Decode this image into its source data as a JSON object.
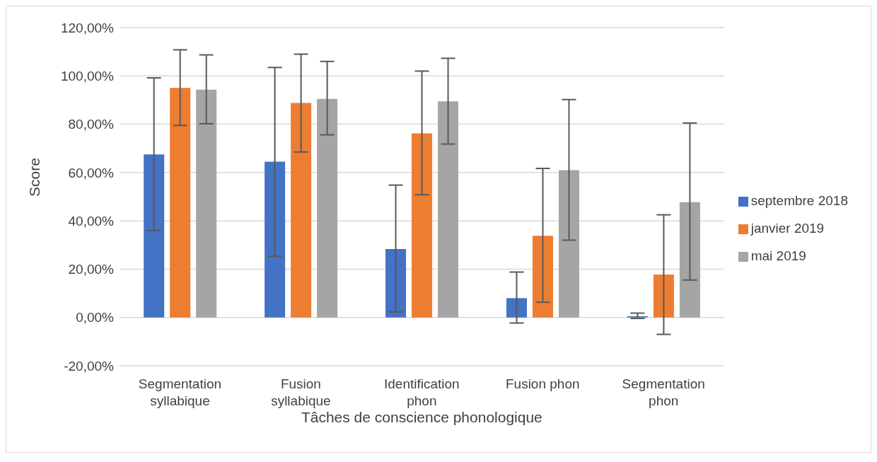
{
  "chart_data": {
    "type": "bar",
    "xlabel": "Tâches de conscience phonologique",
    "ylabel": "Score",
    "categories": [
      "Segmentation syllabique",
      "Fusion syllabique",
      "Identification phon",
      "Fusion phon",
      "Segmentation phon"
    ],
    "series": [
      {
        "name": "septembre 2018",
        "color": "#4472c4",
        "values": [
          67.5,
          64.5,
          28.3,
          8,
          0.5
        ],
        "errors": [
          [
            36,
            99.2
          ],
          [
            25.3,
            103.5
          ],
          [
            2.3,
            54.8
          ],
          [
            -2.3,
            18.8
          ],
          [
            -0.4,
            1.8
          ]
        ]
      },
      {
        "name": "janvier 2019",
        "color": "#ed7d31",
        "values": [
          95,
          88.8,
          76.2,
          33.8,
          17.8
        ],
        "errors": [
          [
            79.5,
            110.8
          ],
          [
            68.5,
            109
          ],
          [
            50.8,
            102
          ],
          [
            6.3,
            61.7
          ],
          [
            -7,
            42.5
          ]
        ]
      },
      {
        "name": "mai 2019",
        "color": "#a5a5a5",
        "values": [
          94.3,
          90.5,
          89.5,
          61,
          47.7
        ],
        "errors": [
          [
            80.2,
            108.7
          ],
          [
            75.6,
            106
          ],
          [
            71.8,
            107.3
          ],
          [
            32,
            90.2
          ],
          [
            15.5,
            80.5
          ]
        ]
      }
    ],
    "ylim": [
      -20,
      120
    ],
    "yticks": [
      {
        "value": -20,
        "label": "-20,00%"
      },
      {
        "value": 0,
        "label": "0,00%"
      },
      {
        "value": 20,
        "label": "20,00%"
      },
      {
        "value": 40,
        "label": "40,00%"
      },
      {
        "value": 60,
        "label": "60,00%"
      },
      {
        "value": 80,
        "label": "80,00%"
      },
      {
        "value": 100,
        "label": "100,00%"
      },
      {
        "value": 120,
        "label": "120,00%"
      }
    ],
    "grid": "y",
    "legend": "right"
  }
}
